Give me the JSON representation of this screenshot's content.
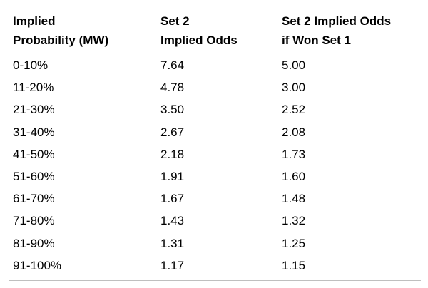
{
  "table": {
    "headers": [
      [
        "Implied",
        "Probability (MW)"
      ],
      [
        "Set 2",
        "Implied Odds"
      ],
      [
        "Set 2 Implied Odds",
        "if Won Set 1"
      ]
    ],
    "rows": [
      [
        "0-10%",
        "7.64",
        "5.00"
      ],
      [
        "11-20%",
        "4.78",
        "3.00"
      ],
      [
        "21-30%",
        "3.50",
        "2.52"
      ],
      [
        "31-40%",
        "2.67",
        "2.08"
      ],
      [
        "41-50%",
        "2.18",
        "1.73"
      ],
      [
        "51-60%",
        "1.91",
        "1.60"
      ],
      [
        "61-70%",
        "1.67",
        "1.48"
      ],
      [
        "71-80%",
        "1.43",
        "1.32"
      ],
      [
        "81-90%",
        "1.31",
        "1.25"
      ],
      [
        "91-100%",
        "1.17",
        "1.15"
      ]
    ]
  }
}
